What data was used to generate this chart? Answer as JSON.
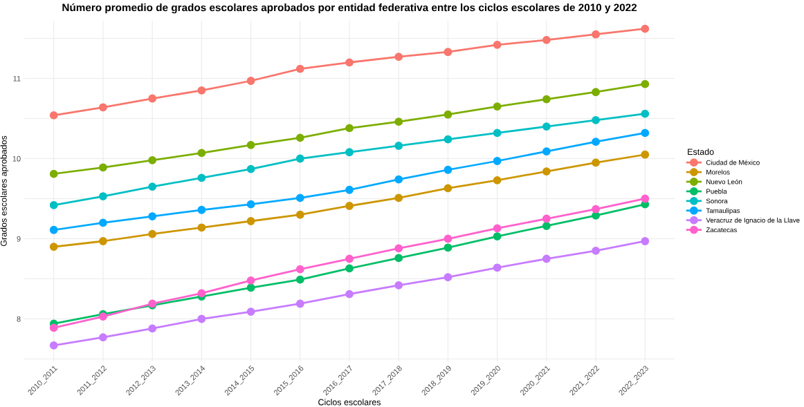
{
  "chart_data": {
    "type": "line",
    "title": "Número promedio de grados escolares aprobados por entidad federativa entre los ciclos escolares de 2010 y 2022",
    "xlabel": "Ciclos escolares",
    "ylabel": "Grados escolares aprobados",
    "legend_title": "Estado",
    "categories": [
      "2010_2011",
      "2011_2012",
      "2012_2013",
      "2013_2014",
      "2014_2015",
      "2015_2016",
      "2016_2017",
      "2017_2018",
      "2018_2019",
      "2019_2020",
      "2020_2021",
      "2021_2022",
      "2022_2023"
    ],
    "series": [
      {
        "name": "Ciudad de México",
        "color": "#f8766d",
        "values": [
          10.54,
          10.64,
          10.75,
          10.85,
          10.97,
          11.12,
          11.2,
          11.27,
          11.33,
          11.42,
          11.48,
          11.55,
          11.62
        ]
      },
      {
        "name": "Morelos",
        "color": "#cd9600",
        "values": [
          8.9,
          8.97,
          9.06,
          9.14,
          9.22,
          9.3,
          9.41,
          9.51,
          9.63,
          9.73,
          9.84,
          9.95,
          10.05
        ]
      },
      {
        "name": "Nuevo León",
        "color": "#7cae00",
        "values": [
          9.81,
          9.89,
          9.98,
          10.07,
          10.17,
          10.26,
          10.38,
          10.46,
          10.55,
          10.65,
          10.74,
          10.83,
          10.93
        ]
      },
      {
        "name": "Puebla",
        "color": "#00be67",
        "values": [
          7.94,
          8.06,
          8.17,
          8.28,
          8.39,
          8.49,
          8.63,
          8.76,
          8.89,
          9.03,
          9.16,
          9.29,
          9.43
        ]
      },
      {
        "name": "Sonora",
        "color": "#00bfc4",
        "values": [
          9.42,
          9.53,
          9.65,
          9.76,
          9.87,
          10.0,
          10.08,
          10.16,
          10.24,
          10.32,
          10.4,
          10.48,
          10.56
        ]
      },
      {
        "name": "Tamaulipas",
        "color": "#00a9ff",
        "values": [
          9.11,
          9.2,
          9.28,
          9.36,
          9.43,
          9.51,
          9.61,
          9.74,
          9.86,
          9.97,
          10.09,
          10.21,
          10.32
        ]
      },
      {
        "name": "Veracruz de Ignacio de la Llave",
        "color": "#c77cff",
        "values": [
          7.67,
          7.77,
          7.88,
          8.0,
          8.09,
          8.19,
          8.31,
          8.42,
          8.52,
          8.64,
          8.75,
          8.85,
          8.97
        ]
      },
      {
        "name": "Zacatecas",
        "color": "#ff61cc",
        "values": [
          7.89,
          8.03,
          8.19,
          8.32,
          8.48,
          8.62,
          8.75,
          8.88,
          9.0,
          9.13,
          9.25,
          9.37,
          9.5
        ]
      }
    ],
    "ylim": [
      7.47,
      11.72
    ],
    "yticks": [
      {
        "value": 7.5,
        "label": null
      },
      8,
      {
        "value": 8.5,
        "label": null
      },
      9,
      {
        "value": 9.5,
        "label": null
      },
      10,
      {
        "value": 10.5,
        "label": null
      },
      11,
      {
        "value": 11.5,
        "label": null
      }
    ],
    "grid": true,
    "legend": "right",
    "marker": "circle",
    "line_style": "solid"
  }
}
